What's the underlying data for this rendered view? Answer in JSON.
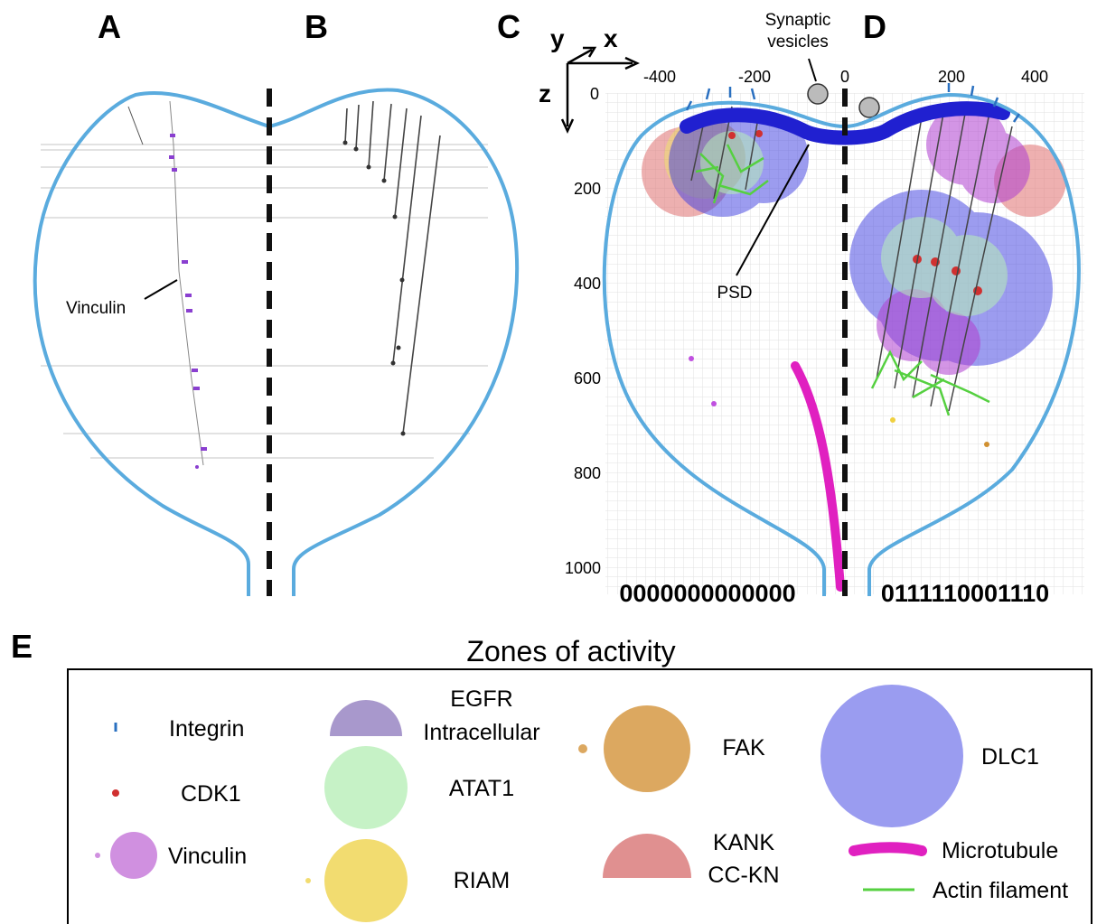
{
  "panels": {
    "a": "A",
    "b": "B",
    "c": "C",
    "d": "D",
    "e": "E"
  },
  "annotations": {
    "vinculin": "Vinculin",
    "synaptic_vesicles": [
      "Synaptic",
      "vesicles"
    ],
    "psd": "PSD"
  },
  "axes": {
    "y": "y",
    "x": "x",
    "z": "z",
    "x_ticks": [
      -400,
      -200,
      0,
      200,
      400
    ],
    "z_ticks": [
      0,
      200,
      400,
      600,
      800,
      1000
    ]
  },
  "codes": {
    "left": "0000000000000",
    "right": "0111110001110"
  },
  "legend": {
    "title": "Zones of activity",
    "items": [
      {
        "label": [
          "Integrin"
        ]
      },
      {
        "label": [
          "CDK1"
        ]
      },
      {
        "label": [
          "Vinculin"
        ]
      },
      {
        "label": [
          "EGFR",
          "Intracellular"
        ]
      },
      {
        "label": [
          "ATAT1"
        ]
      },
      {
        "label": [
          "RIAM"
        ]
      },
      {
        "label": [
          "FAK"
        ]
      },
      {
        "label": [
          "KANK",
          "CC-KN"
        ]
      },
      {
        "label": [
          "DLC1"
        ]
      },
      {
        "label": [
          "Microtubule"
        ]
      },
      {
        "label": [
          "Actin filament"
        ]
      }
    ]
  }
}
